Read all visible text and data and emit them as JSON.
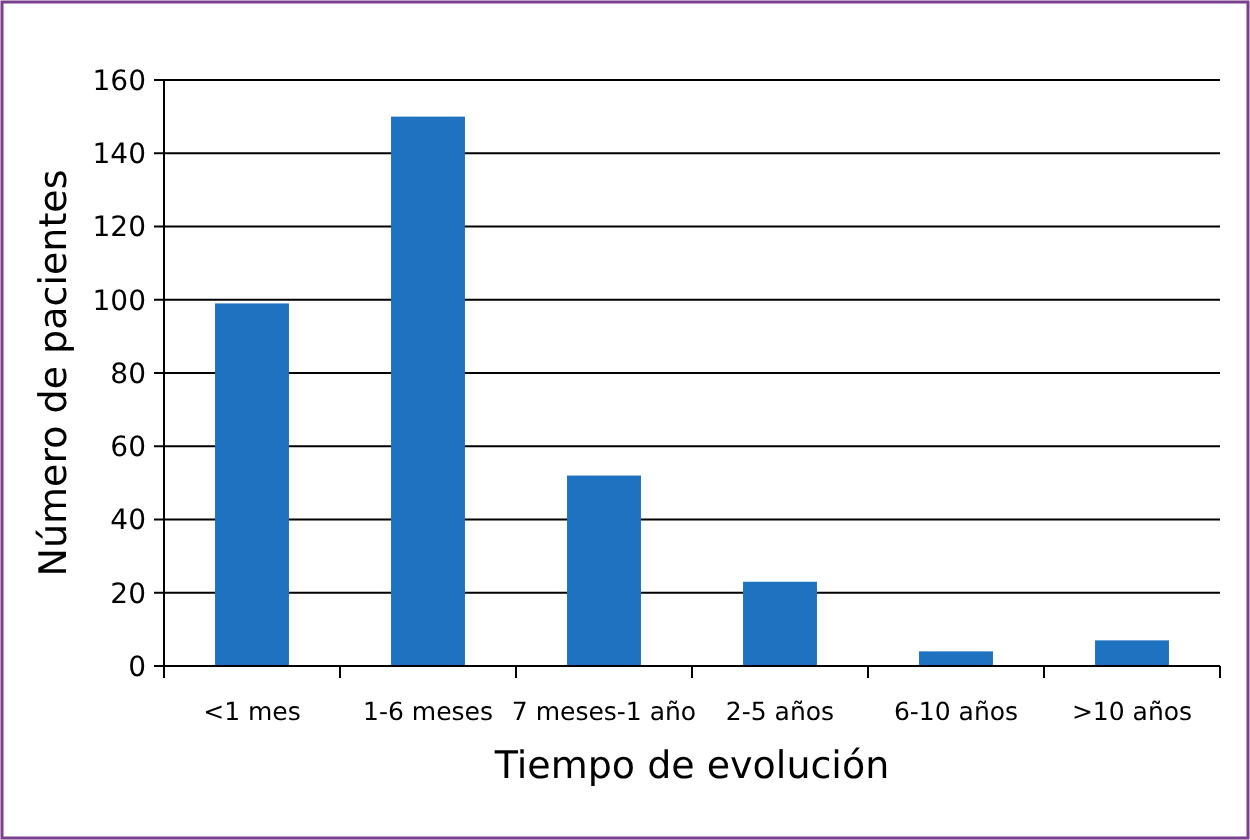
{
  "chart_data": {
    "type": "bar",
    "xlabel": "Tiempo de evolución",
    "ylabel": "Número de pacientes",
    "categories": [
      "<1 mes",
      "1-6 meses",
      "7 meses-1 año",
      "2-5 años",
      "6-10 años",
      ">10 años"
    ],
    "values": [
      99,
      150,
      52,
      23,
      4,
      7
    ],
    "color": "#1f72c0",
    "ylim": [
      0,
      160
    ],
    "yticks": [
      0,
      20,
      40,
      60,
      80,
      100,
      120,
      140,
      160
    ],
    "grid": "y"
  }
}
